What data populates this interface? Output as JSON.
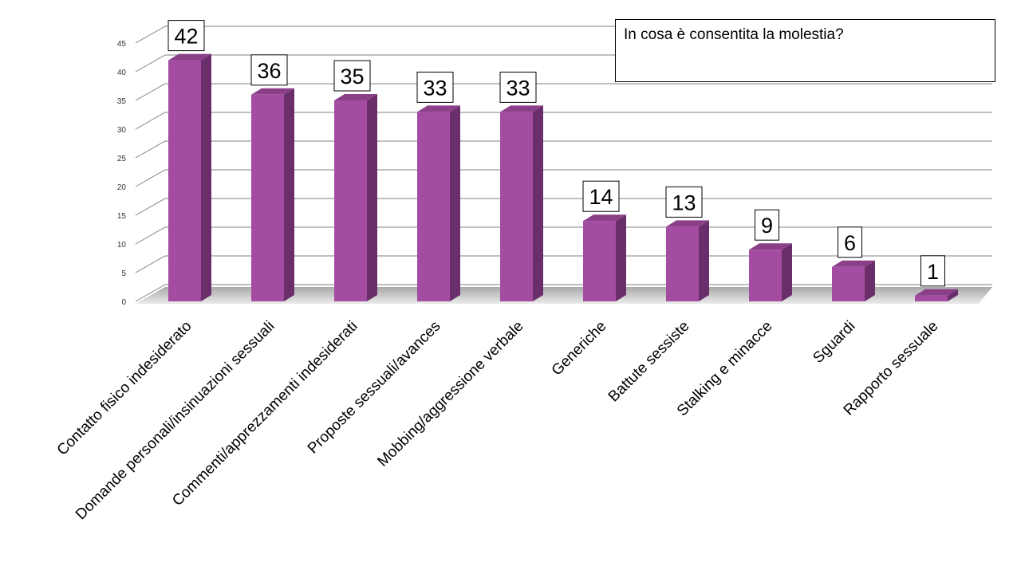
{
  "chart_data": {
    "type": "bar",
    "title": "In cosa è consentita la molestia?",
    "categories": [
      "Contatto fisico indesiderato",
      "Domande personali/insinuazioni sessuali",
      "Commenti/apprezzamenti indesiderati",
      "Proposte sessuali/avances",
      "Mobbing/aggressione verbale",
      "Generiche",
      "Battute sessiste",
      "Stalking e minacce",
      "Sguardi",
      "Rapporto sessuale"
    ],
    "values": [
      42,
      36,
      35,
      33,
      33,
      14,
      13,
      9,
      6,
      1
    ],
    "ylim": [
      0,
      45
    ],
    "yticks": [
      0,
      5,
      10,
      15,
      20,
      25,
      30,
      35,
      40,
      45
    ],
    "grid": true,
    "legend": "none",
    "colors": {
      "bar_front": "#a44ca2",
      "bar_side": "#6a2f6a",
      "bar_top": "#8a3f88",
      "grid": "#808080"
    }
  }
}
